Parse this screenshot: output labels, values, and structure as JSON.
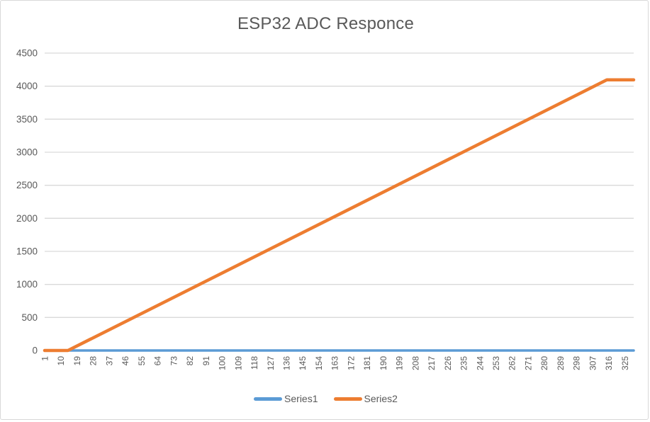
{
  "chart_data": {
    "type": "line",
    "title": "ESP32 ADC Responce",
    "xlabel": "",
    "ylabel": "",
    "x_range": [
      1,
      330
    ],
    "ylim": [
      0,
      4500
    ],
    "y_ticks": [
      0,
      500,
      1000,
      1500,
      2000,
      2500,
      3000,
      3500,
      4000,
      4500
    ],
    "x_tick_labels": [
      "1",
      "10",
      "19",
      "28",
      "37",
      "46",
      "55",
      "64",
      "73",
      "82",
      "91",
      "100",
      "109",
      "118",
      "127",
      "136",
      "145",
      "154",
      "163",
      "172",
      "181",
      "190",
      "199",
      "208",
      "217",
      "226",
      "235",
      "244",
      "253",
      "262",
      "271",
      "280",
      "289",
      "298",
      "307",
      "316",
      "325"
    ],
    "grid": "horizontal",
    "legend_position": "bottom",
    "series": [
      {
        "name": "Series1",
        "color": "#5B9BD5",
        "points": [
          [
            1,
            0
          ],
          [
            330,
            0
          ]
        ]
      },
      {
        "name": "Series2",
        "color": "#ED7D31",
        "points": [
          [
            1,
            0
          ],
          [
            14,
            0
          ],
          [
            315,
            4095
          ],
          [
            330,
            4095
          ]
        ]
      }
    ],
    "colors": {
      "gridline": "#D9D9D9",
      "axis_line": "#BFBFBF",
      "text": "#595959",
      "background": "#FFFFFF",
      "border": "#D8D8D8"
    }
  }
}
